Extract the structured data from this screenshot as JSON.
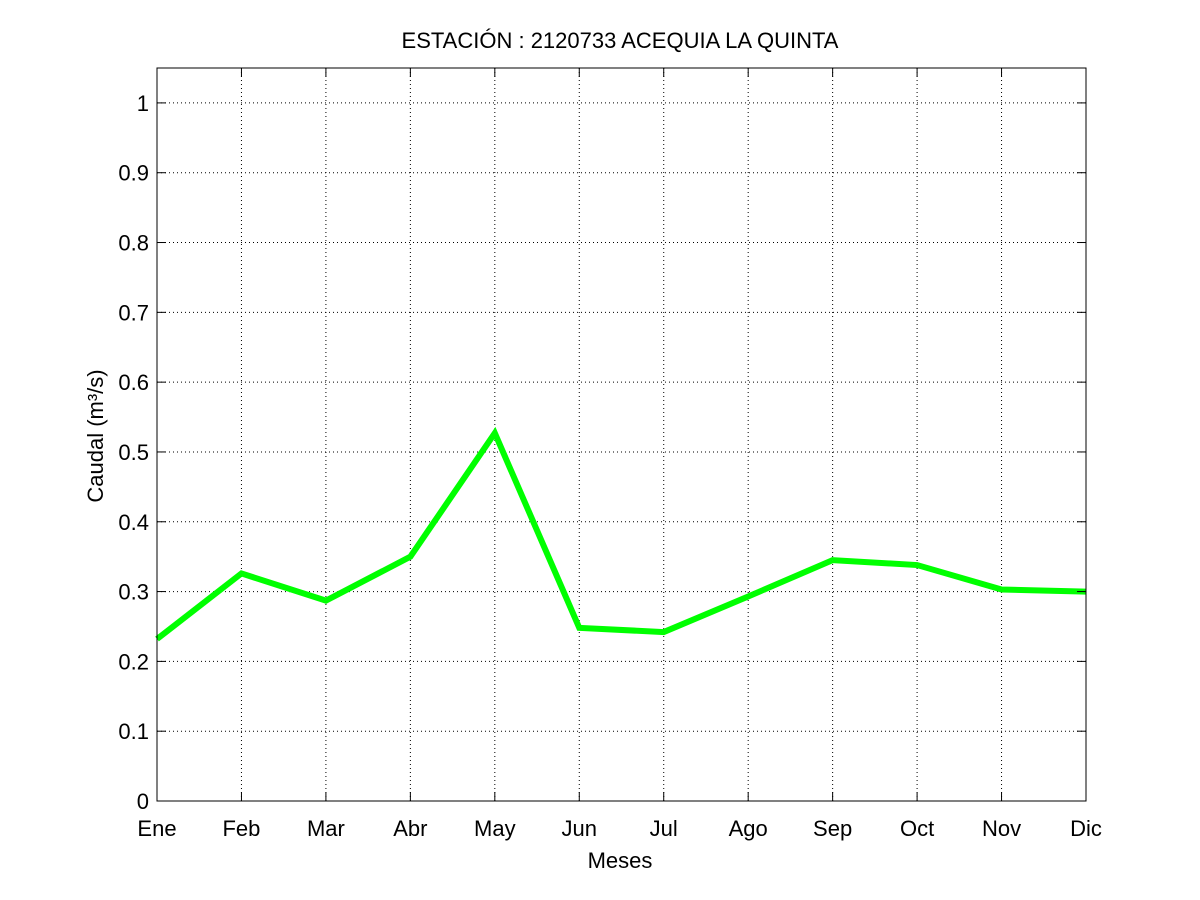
{
  "chart_data": {
    "type": "line",
    "title": "ESTACIÓN :  2120733  ACEQUIA LA QUINTA",
    "xlabel": "Meses",
    "ylabel": "Caudal (m³/s)",
    "categories": [
      "Ene",
      "Feb",
      "Mar",
      "Abr",
      "May",
      "Jun",
      "Jul",
      "Ago",
      "Sep",
      "Oct",
      "Nov",
      "Dic"
    ],
    "series": [
      {
        "values": [
          0.232,
          0.326,
          0.287,
          0.35,
          0.527,
          0.248,
          0.242,
          0.293,
          0.345,
          0.338,
          0.303,
          0.3
        ],
        "color": "#00ff00"
      }
    ],
    "ylim": [
      0,
      1.05
    ],
    "yticks": [
      0,
      0.1,
      0.2,
      0.3,
      0.4,
      0.5,
      0.6,
      0.7,
      0.8,
      0.9,
      1
    ],
    "ytick_labels": [
      "0",
      "0.1",
      "0.2",
      "0.3",
      "0.4",
      "0.5",
      "0.6",
      "0.7",
      "0.8",
      "0.9",
      "1"
    ],
    "grid": true
  }
}
